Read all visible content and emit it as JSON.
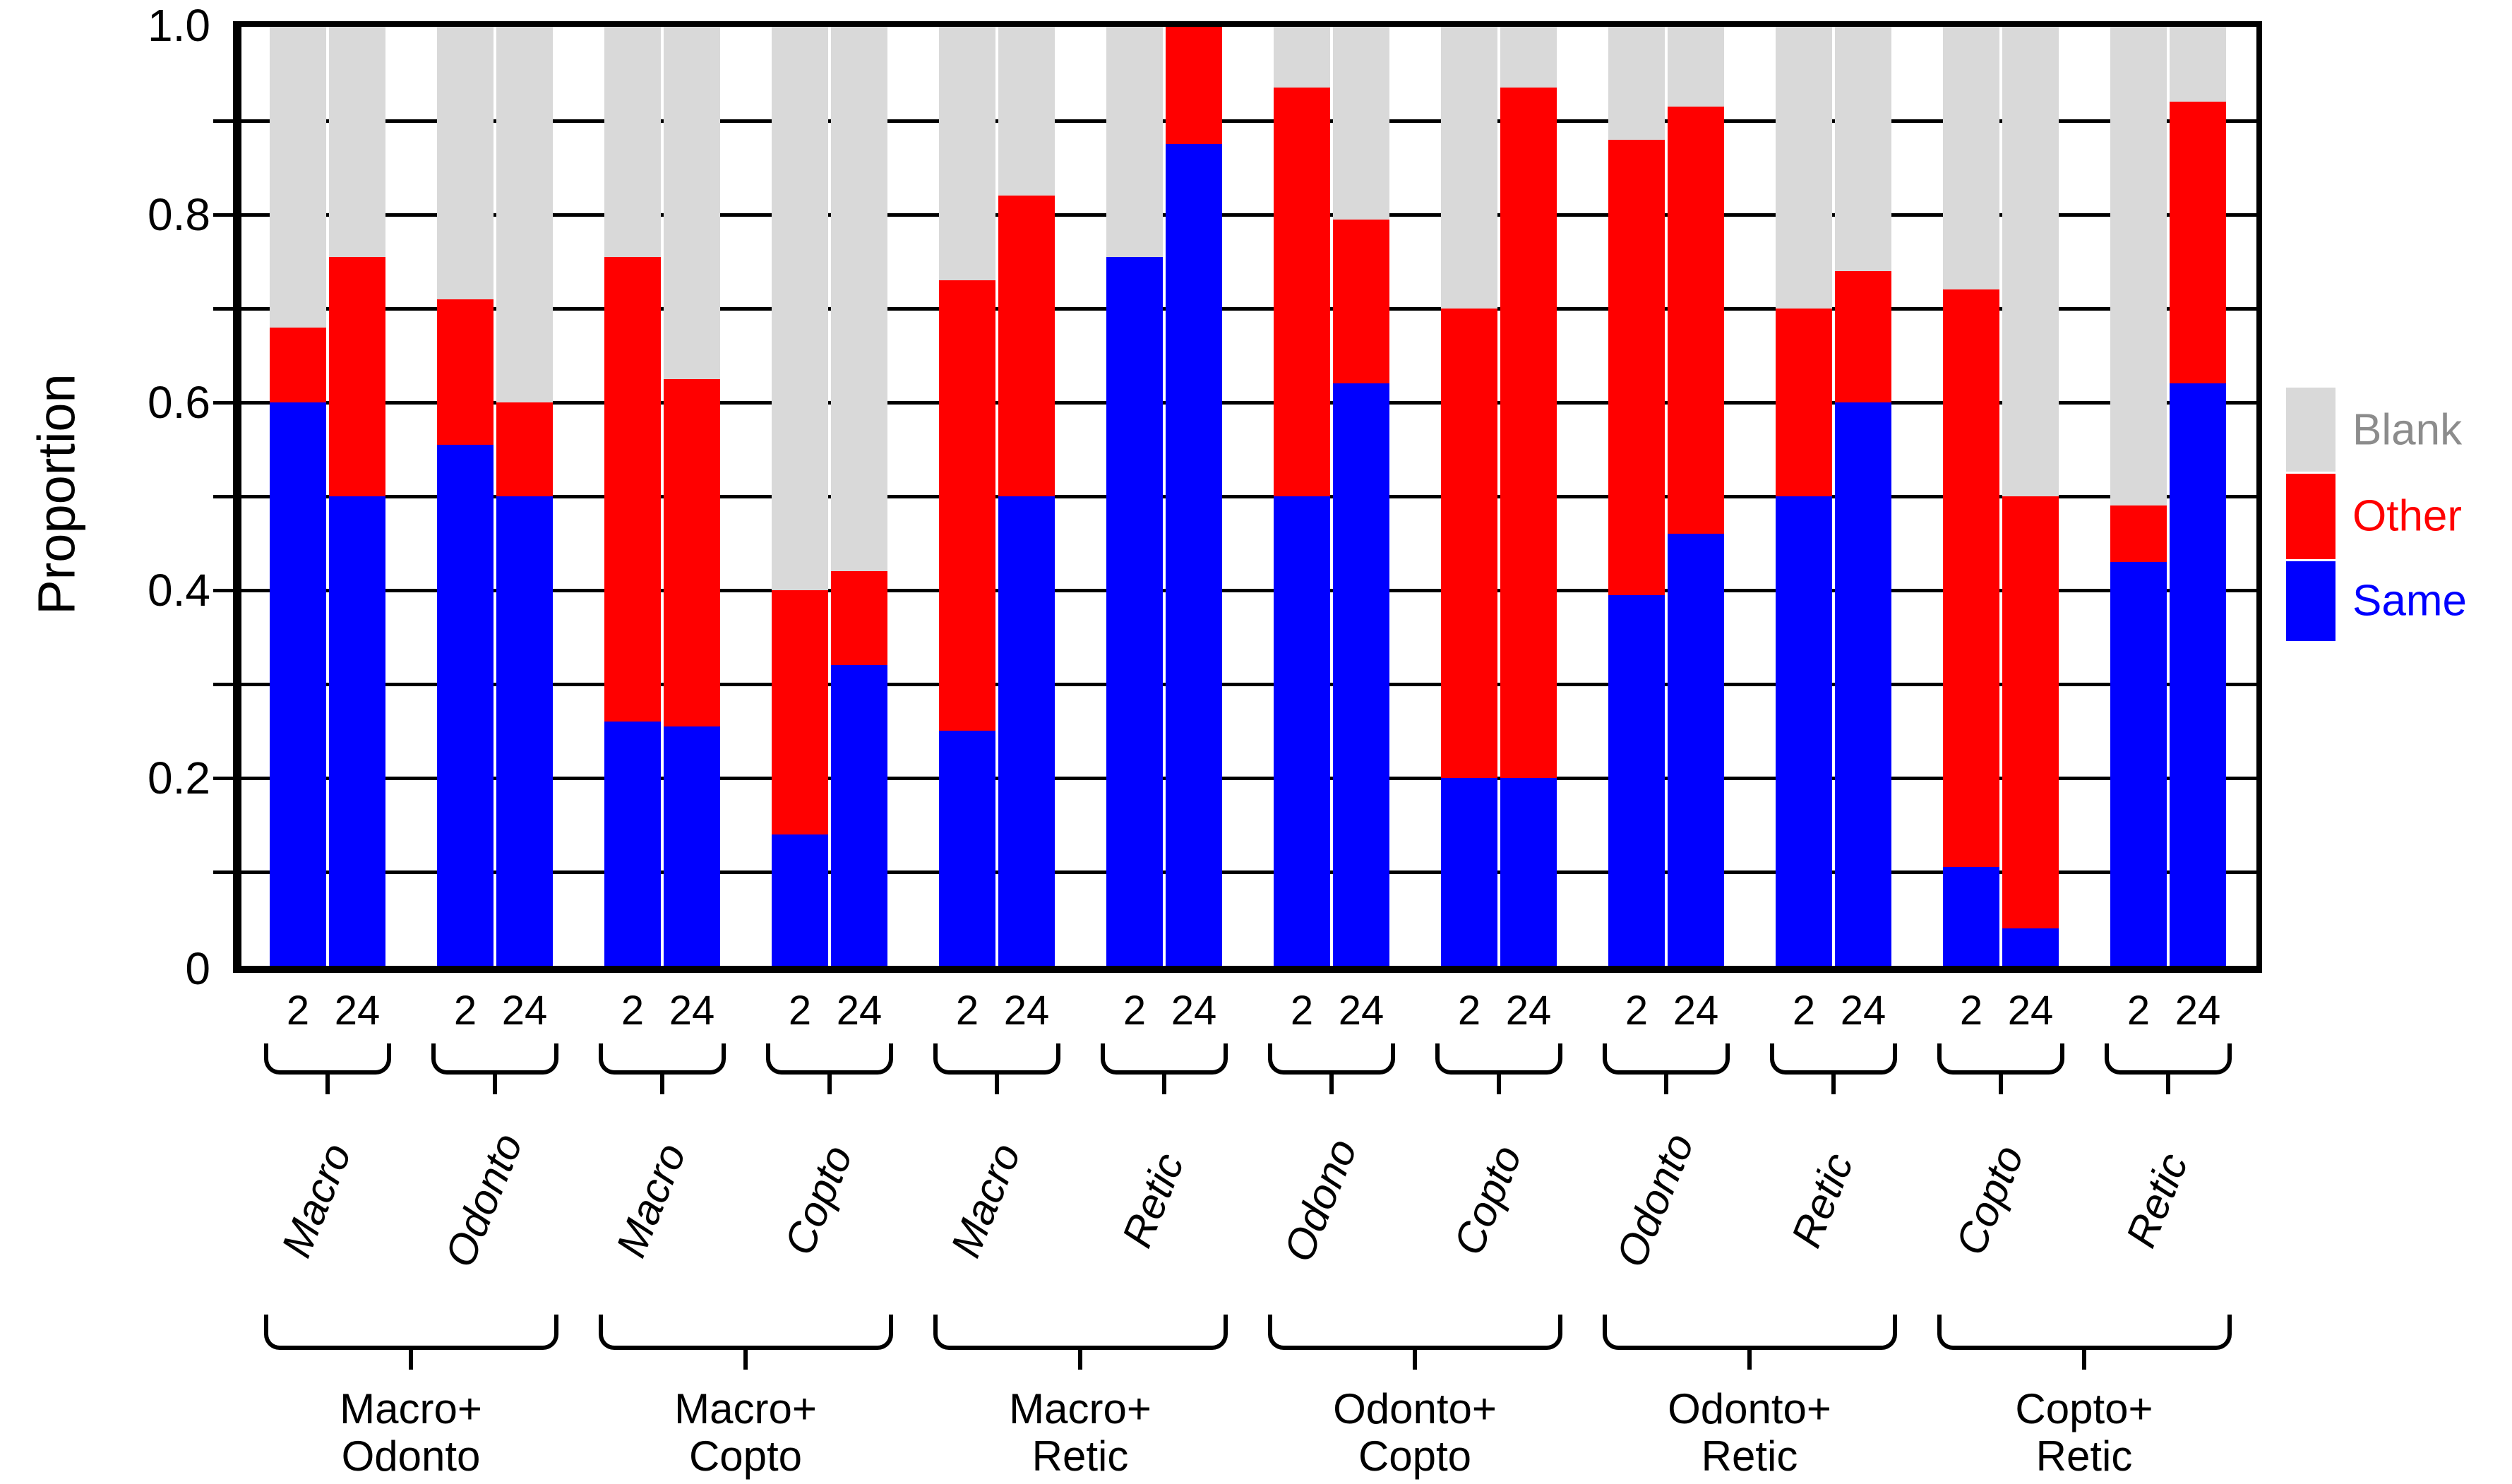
{
  "figure": {
    "y_axis_title": "Proportion",
    "y_tick_labels": [
      "1.0",
      "0.8",
      "0.6",
      "0.4",
      "0.2",
      "0"
    ]
  },
  "legend": {
    "items": [
      {
        "label": "Blank",
        "swatch_color": "#d9d9d9",
        "label_color": "#8c8c8c"
      },
      {
        "label": "Other",
        "swatch_color": "#ff0000",
        "label_color": "#ff0000"
      },
      {
        "label": "Same",
        "swatch_color": "#0000ff",
        "label_color": "#0000ff"
      }
    ]
  },
  "chart_data": {
    "type": "bar",
    "stacked": true,
    "title": "",
    "xlabel": "",
    "ylabel": "Proportion",
    "ylim": [
      0,
      1
    ],
    "gridline_step": 0.1,
    "grid": true,
    "legend_position": "right",
    "time_tick_labels": [
      "2",
      "24"
    ],
    "series_order_bottom_to_top": [
      "Same",
      "Other",
      "Blank"
    ],
    "series_colors": {
      "Same": "#0000ff",
      "Other": "#ff0000",
      "Blank": "#d9d9d9"
    },
    "groups": [
      {
        "label": [
          "Macro+",
          "Odonto"
        ],
        "subgroups": [
          {
            "species": "Macro",
            "bars": [
              {
                "time": "2",
                "same": 0.6,
                "other": 0.08,
                "blank": 0.32
              },
              {
                "time": "24",
                "same": 0.5,
                "other": 0.255,
                "blank": 0.245
              }
            ]
          },
          {
            "species": "Odonto",
            "bars": [
              {
                "time": "2",
                "same": 0.555,
                "other": 0.155,
                "blank": 0.29
              },
              {
                "time": "24",
                "same": 0.5,
                "other": 0.1,
                "blank": 0.4
              }
            ]
          }
        ]
      },
      {
        "label": [
          "Macro+",
          "Copto"
        ],
        "subgroups": [
          {
            "species": "Macro",
            "bars": [
              {
                "time": "2",
                "same": 0.26,
                "other": 0.495,
                "blank": 0.245
              },
              {
                "time": "24",
                "same": 0.255,
                "other": 0.37,
                "blank": 0.375
              }
            ]
          },
          {
            "species": "Copto",
            "bars": [
              {
                "time": "2",
                "same": 0.14,
                "other": 0.26,
                "blank": 0.6
              },
              {
                "time": "24",
                "same": 0.32,
                "other": 0.1,
                "blank": 0.58
              }
            ]
          }
        ]
      },
      {
        "label": [
          "Macro+",
          "Retic"
        ],
        "subgroups": [
          {
            "species": "Macro",
            "bars": [
              {
                "time": "2",
                "same": 0.25,
                "other": 0.48,
                "blank": 0.27
              },
              {
                "time": "24",
                "same": 0.5,
                "other": 0.32,
                "blank": 0.18
              }
            ]
          },
          {
            "species": "Retic",
            "bars": [
              {
                "time": "2",
                "same": 0.755,
                "other": 0.0,
                "blank": 0.245
              },
              {
                "time": "24",
                "same": 0.875,
                "other": 0.125,
                "blank": 0.0
              }
            ]
          }
        ]
      },
      {
        "label": [
          "Odonto+",
          "Copto"
        ],
        "subgroups": [
          {
            "species": "Odono",
            "bars": [
              {
                "time": "2",
                "same": 0.5,
                "other": 0.435,
                "blank": 0.065
              },
              {
                "time": "24",
                "same": 0.62,
                "other": 0.175,
                "blank": 0.205
              }
            ]
          },
          {
            "species": "Copto",
            "bars": [
              {
                "time": "2",
                "same": 0.2,
                "other": 0.5,
                "blank": 0.3
              },
              {
                "time": "24",
                "same": 0.2,
                "other": 0.735,
                "blank": 0.065
              }
            ]
          }
        ]
      },
      {
        "label": [
          "Odonto+",
          "Retic"
        ],
        "subgroups": [
          {
            "species": "Odonto",
            "bars": [
              {
                "time": "2",
                "same": 0.395,
                "other": 0.485,
                "blank": 0.12
              },
              {
                "time": "24",
                "same": 0.46,
                "other": 0.455,
                "blank": 0.085
              }
            ]
          },
          {
            "species": "Retic",
            "bars": [
              {
                "time": "2",
                "same": 0.5,
                "other": 0.2,
                "blank": 0.3
              },
              {
                "time": "24",
                "same": 0.6,
                "other": 0.14,
                "blank": 0.26
              }
            ]
          }
        ]
      },
      {
        "label": [
          "Copto+",
          "Retic"
        ],
        "subgroups": [
          {
            "species": "Copto",
            "bars": [
              {
                "time": "2",
                "same": 0.105,
                "other": 0.615,
                "blank": 0.28
              },
              {
                "time": "24",
                "same": 0.04,
                "other": 0.46,
                "blank": 0.5
              }
            ]
          },
          {
            "species": "Retic",
            "bars": [
              {
                "time": "2",
                "same": 0.43,
                "other": 0.06,
                "blank": 0.51
              },
              {
                "time": "24",
                "same": 0.62,
                "other": 0.3,
                "blank": 0.08
              }
            ]
          }
        ]
      }
    ]
  }
}
